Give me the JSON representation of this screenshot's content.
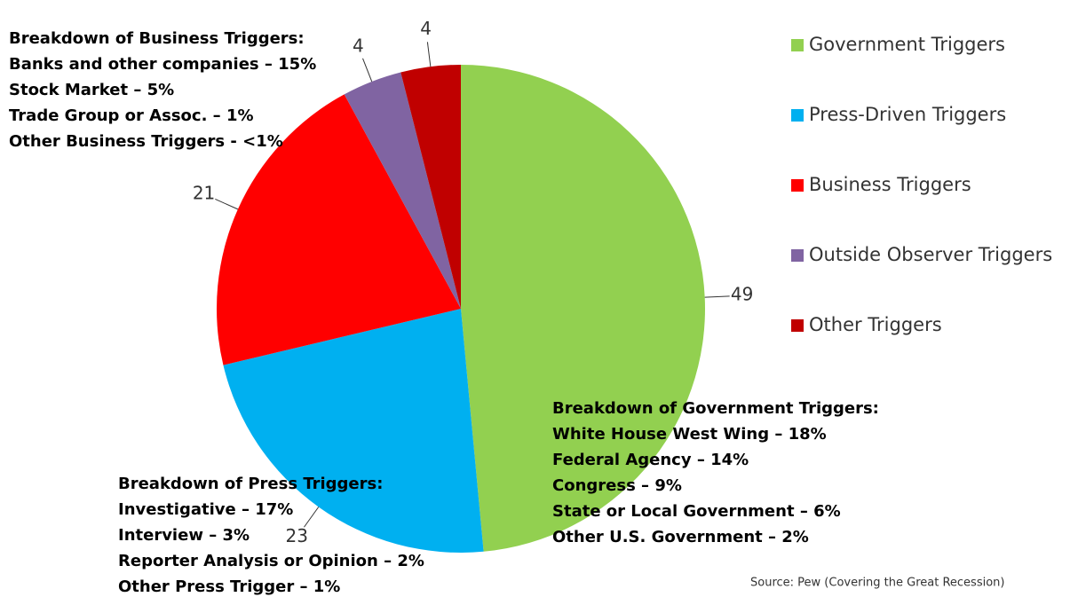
{
  "chart_data": {
    "type": "pie",
    "categories": [
      "Government Triggers",
      "Press-Driven Triggers",
      "Business Triggers",
      "Outside Observer Triggers",
      "Other Triggers"
    ],
    "values": [
      49,
      23,
      21,
      4,
      4
    ],
    "colors": [
      "#92d050",
      "#00b0f0",
      "#ff0000",
      "#8064a2",
      "#c00000"
    ],
    "legend": "right",
    "annotations": [
      {
        "lines": [
          "Breakdown of Business Triggers:",
          "Banks and other companies – 15%",
          "Stock Market – 5%",
          "Trade Group or Assoc. – 1%",
          "Other Business Triggers - <1%"
        ]
      },
      {
        "lines": [
          "Breakdown of Government Triggers:",
          "White House West Wing – 18%",
          "Federal Agency – 14%",
          "Congress – 9%",
          "State or Local Government – 6%",
          "Other U.S. Government – 2%"
        ]
      },
      {
        "lines": [
          "Breakdown of Press Triggers:",
          "Investigative – 17%",
          "Interview – 3%",
          "Reporter Analysis or Opinion – 2%",
          "Other Press Trigger – 1%"
        ]
      }
    ],
    "source": "Source: Pew (Covering the Great Recession)"
  }
}
